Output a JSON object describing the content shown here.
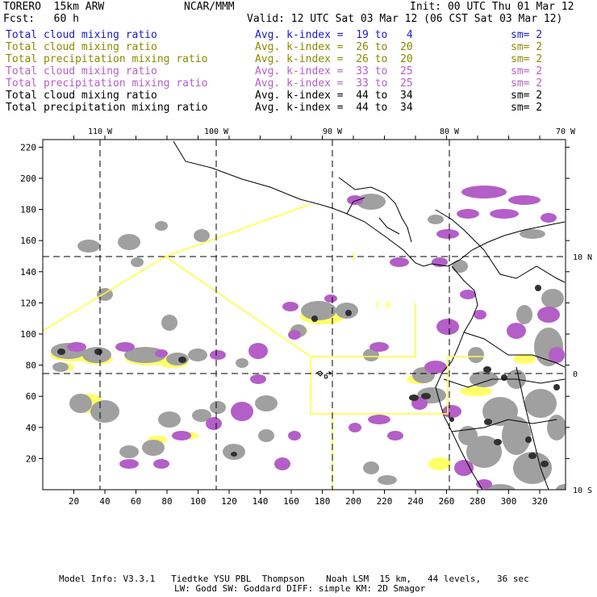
{
  "header": {
    "model": "TORERO  15km ARW",
    "org": "NCAR/MMM",
    "init": "Init: 00 UTC Thu 01 Mar 12",
    "fcst": "Fcst:   60 h",
    "valid": "Valid: 12 UTC Sat 03 Mar 12 (06 CST Sat 03 Mar 12)"
  },
  "legend": [
    {
      "field": "Total cloud mixing ratio",
      "index": "Avg. k-index =  19 to   4",
      "sm": "sm= 2",
      "color": "#1a1acd"
    },
    {
      "field": "Total cloud mixing ratio",
      "index": "Avg. k-index =  26 to  20",
      "sm": "sm= 2",
      "color": "#8a8a00"
    },
    {
      "field": "Total precipitation mixing ratio",
      "index": "Avg. k-index =  26 to  20",
      "sm": "sm= 2",
      "color": "#8a8a00"
    },
    {
      "field": "Total cloud mixing ratio",
      "index": "Avg. k-index =  33 to  25",
      "sm": "sm= 2",
      "color": "#b45ec8"
    },
    {
      "field": "Total precipitation mixing ratio",
      "index": "Avg. k-index =  33 to  25",
      "sm": "sm= 2",
      "color": "#b45ec8"
    },
    {
      "field": "Total cloud mixing ratio",
      "index": "Avg. k-index =  44 to  34",
      "sm": "sm= 2",
      "color": "#000000"
    },
    {
      "field": "Total precipitation mixing ratio",
      "index": "Avg. k-index =  44 to  34",
      "sm": "sm= 2",
      "color": "#000000"
    }
  ],
  "map": {
    "lon_labels": [
      "110 W",
      "100 W",
      "90 W",
      "80 W",
      "70 W"
    ],
    "lat_labels": [
      "10 N",
      "0",
      "10 S"
    ],
    "x_ticks": [
      "20",
      "40",
      "60",
      "80",
      "100",
      "120",
      "140",
      "160",
      "180",
      "200",
      "220",
      "240",
      "260",
      "280",
      "300",
      "320"
    ],
    "y_ticks": [
      "220",
      "200",
      "180",
      "160",
      "140",
      "120",
      "100",
      "80",
      "60",
      "40",
      "20"
    ],
    "region_label_1": "I",
    "region_label_2": "C  R",
    "colors": {
      "boundary": "#ffff33",
      "cloud_gray": "#a0a0a0",
      "precip_purple": "#b45ec8",
      "light_yellow": "#ffff66",
      "dark": "#303030"
    }
  },
  "footer": {
    "line1": "Model Info: V3.3.1   Tiedtke YSU PBL  Thompson    Noah LSM  15 km,   44 levels,   36 sec",
    "line2": "LW: Godd SW: Goddard DIFF: simple KM: 2D Smagor"
  }
}
